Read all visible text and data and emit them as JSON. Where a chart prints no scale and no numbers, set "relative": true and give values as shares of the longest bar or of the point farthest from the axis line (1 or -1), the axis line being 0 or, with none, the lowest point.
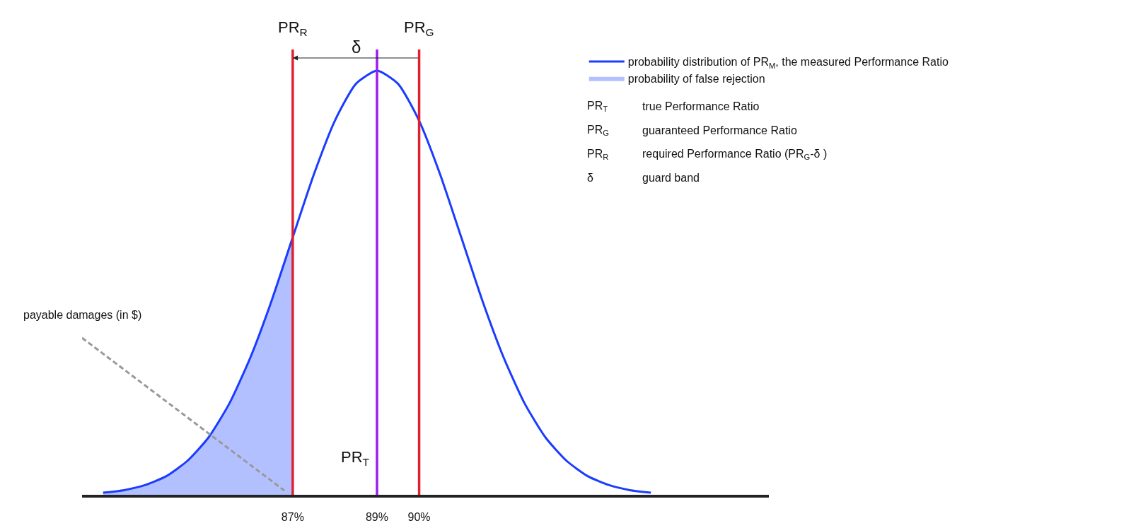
{
  "chart_data": {
    "type": "line",
    "relative": true,
    "legend": "top right",
    "marker": "none",
    "xlim": [
      82,
      98.3
    ],
    "xticks": [
      {
        "value": 87,
        "label": "87%"
      },
      {
        "value": 89,
        "label": "89%"
      },
      {
        "value": 90,
        "label": "90%"
      }
    ],
    "series": [
      {
        "name": "probability distribution of PR$_{M}$, the measured Performance Ratio",
        "color": "#1a3cff",
        "x": [
          82.5,
          83,
          83.5,
          84,
          84.5,
          85,
          85.5,
          86,
          86.5,
          87,
          87.5,
          88,
          88.5,
          89,
          89.5,
          90,
          90.5,
          91,
          91.5,
          92,
          92.5,
          93,
          93.5,
          94,
          94.5,
          95,
          95.5
        ],
        "values": [
          0.005,
          0.011,
          0.023,
          0.044,
          0.08,
          0.135,
          0.216,
          0.325,
          0.458,
          0.607,
          0.755,
          0.882,
          0.969,
          1,
          0.969,
          0.882,
          0.755,
          0.607,
          0.458,
          0.325,
          0.216,
          0.135,
          0.08,
          0.044,
          0.023,
          0.011,
          0.005
        ]
      },
      {
        "name": "probability of false rejection",
        "type": "area",
        "color": "#b3c0ff",
        "x": [
          82.5,
          83,
          83.5,
          84,
          84.5,
          85,
          85.5,
          86,
          86.5,
          87
        ],
        "values": [
          0.005,
          0.011,
          0.023,
          0.044,
          0.08,
          0.135,
          0.216,
          0.325,
          0.458,
          0.607
        ]
      },
      {
        "color": "#999999",
        "line_style": "dashed",
        "x": [
          82,
          86.8
        ],
        "values": [
          0.37,
          0.01
        ]
      }
    ],
    "ref_lines": [
      {
        "axis": "x",
        "value": 87,
        "label": "PR$_{R}$",
        "color": "#e02030"
      },
      {
        "axis": "x",
        "value": 89,
        "label": "PR$_{T}$",
        "color": "#9b1cf0"
      },
      {
        "axis": "x",
        "value": 90,
        "label": "PR$_{G}$",
        "color": "#e02030"
      }
    ],
    "annotations": [
      "δ",
      "payable damages (in $)",
      "PR$_{T}$ true Performance Ratio",
      "PR$_{G}$ guaranteed Performance Ratio",
      "PR$_{R}$ required Performance Ratio (PR$_{G}$-δ )",
      "δ guard band"
    ]
  }
}
